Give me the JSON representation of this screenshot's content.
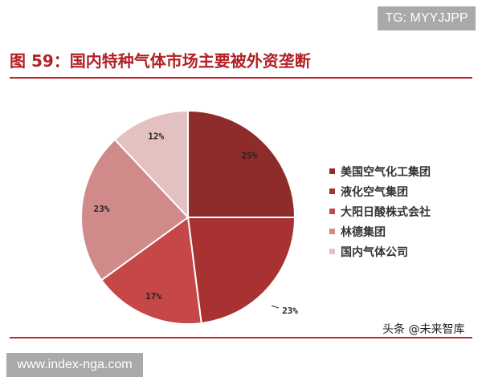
{
  "header": {
    "tg_label": "TG: MYYJJPP",
    "site_label": "www.index-nga.com",
    "watermark": "头条 @未来智库"
  },
  "chart_data": {
    "type": "pie",
    "title": "图 59：国内特种气体市场主要被外资垄断",
    "legend_position": "right",
    "slices": [
      {
        "label": "美国空气化工集团",
        "value": 25,
        "value_label": "25%",
        "color": "#8e2c2a"
      },
      {
        "label": "液化空气集团",
        "value": 23,
        "value_label": "23%",
        "color": "#a83231"
      },
      {
        "label": "大阳日酸株式会社",
        "value": 17,
        "value_label": "17%",
        "color": "#c54748"
      },
      {
        "label": "林德集团",
        "value": 23,
        "value_label": "23%",
        "color": "#d08a8a"
      },
      {
        "label": "国内气体公司",
        "value": 12,
        "value_label": "12%",
        "color": "#e3c1c0"
      }
    ]
  }
}
